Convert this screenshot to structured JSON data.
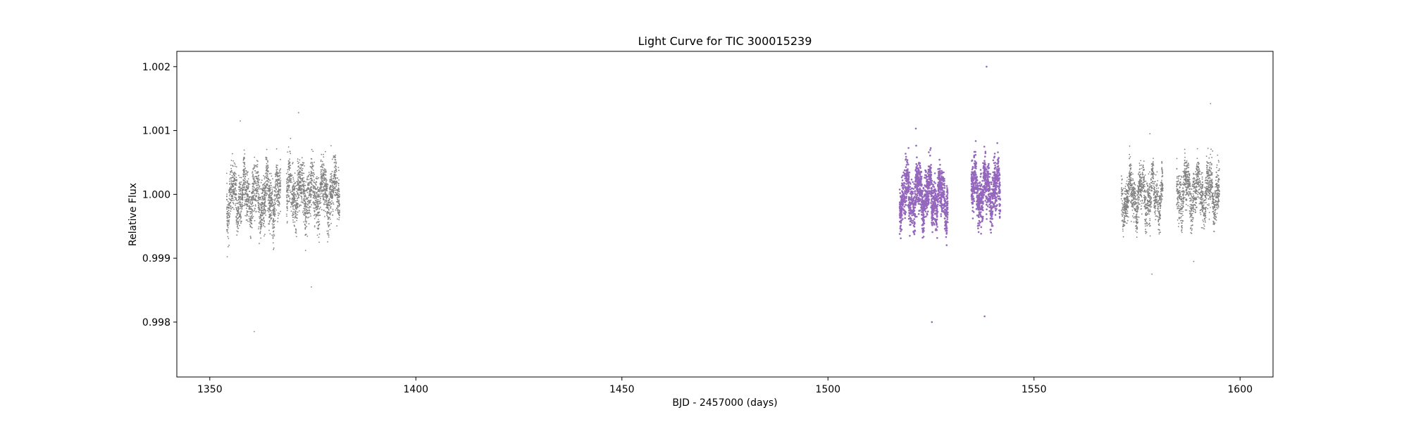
{
  "chart_data": {
    "type": "scatter",
    "title": "Light Curve for TIC 300015239",
    "xlabel": "BJD - 2457000 (days)",
    "ylabel": "Relative Flux",
    "xlim": [
      1342,
      1608
    ],
    "ylim": [
      0.99714,
      1.00224
    ],
    "x_ticks": [
      1350,
      1400,
      1450,
      1500,
      1550,
      1600
    ],
    "x_tick_labels": [
      "1350",
      "1400",
      "1450",
      "1500",
      "1550",
      "1600"
    ],
    "y_ticks": [
      0.998,
      0.999,
      1.0,
      1.001,
      1.002
    ],
    "y_tick_labels": [
      "0.998",
      "0.999",
      "1.000",
      "1.001",
      "1.002"
    ],
    "grid": false,
    "legend": "none",
    "point_color_other": "#808080",
    "point_color_highlight": "#9467bd",
    "series": [
      {
        "color": "#808080",
        "highlight": false,
        "segments": [
          {
            "x_start": 1354.1,
            "x_end": 1367.2,
            "median": 0.99995,
            "scatter": 0.00035,
            "min": 0.99785,
            "max": 1.00115
          },
          {
            "x_start": 1368.6,
            "x_end": 1381.5,
            "median": 1.00002,
            "scatter": 0.00035,
            "min": 0.99855,
            "max": 1.00128
          }
        ]
      },
      {
        "color": "#9467bd",
        "highlight": true,
        "segments": [
          {
            "x_start": 1517.4,
            "x_end": 1529.1,
            "median": 0.99998,
            "scatter": 0.00032,
            "min": 0.998,
            "max": 1.00103
          },
          {
            "x_start": 1534.8,
            "x_end": 1541.8,
            "median": 1.00005,
            "scatter": 0.00033,
            "min": 0.99809,
            "max": 1.002
          }
        ]
      },
      {
        "color": "#808080",
        "highlight": false,
        "segments": [
          {
            "x_start": 1571.2,
            "x_end": 1581.3,
            "median": 0.99998,
            "scatter": 0.0003,
            "min": 0.99875,
            "max": 1.00095
          },
          {
            "x_start": 1584.6,
            "x_end": 1595.0,
            "median": 1.00005,
            "scatter": 0.00032,
            "min": 0.99895,
            "max": 1.00142
          }
        ]
      }
    ]
  }
}
